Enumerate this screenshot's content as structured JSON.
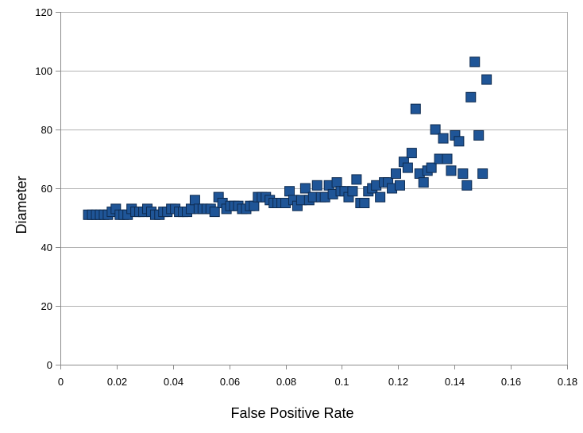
{
  "chart_data": {
    "type": "scatter",
    "title": "",
    "xlabel": "False Positive Rate",
    "ylabel": "Diameter",
    "xlim": [
      0,
      0.18
    ],
    "ylim": [
      0,
      120
    ],
    "x_ticks": [
      0,
      0.02,
      0.04,
      0.06,
      0.08,
      0.1,
      0.12,
      0.14,
      0.16,
      0.18
    ],
    "x_tick_labels": [
      "0",
      "0.02",
      "0.04",
      "0.06",
      "0.08",
      "0.1",
      "0.12",
      "0.14",
      "0.16",
      "0.18"
    ],
    "y_ticks": [
      0,
      20,
      40,
      60,
      80,
      100,
      120
    ],
    "y_tick_labels": [
      "0",
      "20",
      "40",
      "60",
      "80",
      "100",
      "120"
    ],
    "grid": "horizontal",
    "legend": "none",
    "marker": "square",
    "marker_color": "#1f5597",
    "marker_edge_color": "#0d2a4f",
    "grid_color": "#b3b3b3",
    "series": [
      {
        "points": [
          [
            0.0099,
            51
          ],
          [
            0.0113,
            51
          ],
          [
            0.0127,
            51
          ],
          [
            0.0141,
            51
          ],
          [
            0.0155,
            51
          ],
          [
            0.0169,
            51
          ],
          [
            0.0183,
            52
          ],
          [
            0.0197,
            53
          ],
          [
            0.0211,
            51
          ],
          [
            0.0225,
            51
          ],
          [
            0.0239,
            51
          ],
          [
            0.0253,
            53
          ],
          [
            0.0267,
            52
          ],
          [
            0.0281,
            52
          ],
          [
            0.0295,
            52
          ],
          [
            0.0309,
            53
          ],
          [
            0.0323,
            52
          ],
          [
            0.0337,
            51
          ],
          [
            0.0352,
            51
          ],
          [
            0.0366,
            52
          ],
          [
            0.038,
            52
          ],
          [
            0.0394,
            53
          ],
          [
            0.0408,
            53
          ],
          [
            0.0422,
            52
          ],
          [
            0.0436,
            52
          ],
          [
            0.045,
            52
          ],
          [
            0.0464,
            53
          ],
          [
            0.0478,
            56
          ],
          [
            0.0492,
            53
          ],
          [
            0.0506,
            53
          ],
          [
            0.052,
            53
          ],
          [
            0.0534,
            53
          ],
          [
            0.0548,
            52
          ],
          [
            0.0562,
            57
          ],
          [
            0.0576,
            55
          ],
          [
            0.059,
            53
          ],
          [
            0.0604,
            54
          ],
          [
            0.0618,
            54
          ],
          [
            0.0632,
            54
          ],
          [
            0.0646,
            53
          ],
          [
            0.066,
            53
          ],
          [
            0.0674,
            54
          ],
          [
            0.0688,
            54
          ],
          [
            0.0702,
            57
          ],
          [
            0.0716,
            57
          ],
          [
            0.073,
            57
          ],
          [
            0.0744,
            56
          ],
          [
            0.0758,
            55
          ],
          [
            0.0772,
            55
          ],
          [
            0.0786,
            55
          ],
          [
            0.08,
            55
          ],
          [
            0.0814,
            59
          ],
          [
            0.0828,
            56
          ],
          [
            0.0842,
            54
          ],
          [
            0.0856,
            56
          ],
          [
            0.087,
            60
          ],
          [
            0.0884,
            56
          ],
          [
            0.0898,
            57
          ],
          [
            0.0912,
            61
          ],
          [
            0.0926,
            57
          ],
          [
            0.094,
            57
          ],
          [
            0.0954,
            61
          ],
          [
            0.0968,
            58
          ],
          [
            0.0982,
            62
          ],
          [
            0.0996,
            59
          ],
          [
            0.101,
            59
          ],
          [
            0.1024,
            57
          ],
          [
            0.1038,
            59
          ],
          [
            0.1052,
            63
          ],
          [
            0.1066,
            55
          ],
          [
            0.108,
            55
          ],
          [
            0.1094,
            59
          ],
          [
            0.1108,
            60
          ],
          [
            0.1122,
            61
          ],
          [
            0.1136,
            57
          ],
          [
            0.115,
            62
          ],
          [
            0.1164,
            62
          ],
          [
            0.1178,
            60
          ],
          [
            0.1192,
            65
          ],
          [
            0.1206,
            61
          ],
          [
            0.122,
            69
          ],
          [
            0.1234,
            67
          ],
          [
            0.1248,
            72
          ],
          [
            0.1262,
            87
          ],
          [
            0.1276,
            65
          ],
          [
            0.129,
            62
          ],
          [
            0.1304,
            66
          ],
          [
            0.1318,
            67
          ],
          [
            0.1332,
            80
          ],
          [
            0.1346,
            70
          ],
          [
            0.136,
            77
          ],
          [
            0.1374,
            70
          ],
          [
            0.1388,
            66
          ],
          [
            0.1402,
            78
          ],
          [
            0.1416,
            76
          ],
          [
            0.143,
            65
          ],
          [
            0.1444,
            61
          ],
          [
            0.1458,
            91
          ],
          [
            0.1472,
            103
          ],
          [
            0.1486,
            78
          ],
          [
            0.15,
            65
          ],
          [
            0.1514,
            97
          ]
        ]
      }
    ]
  }
}
